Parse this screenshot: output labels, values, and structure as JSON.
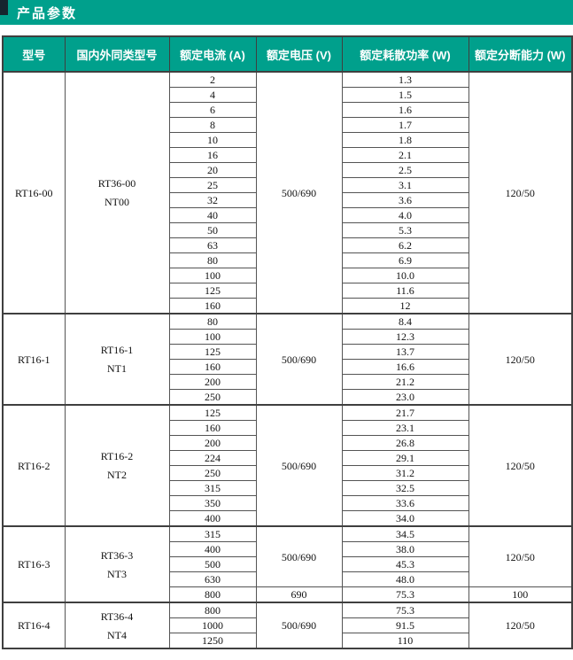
{
  "header": {
    "title": "产品参数"
  },
  "colors": {
    "accent_teal": "#00a08c",
    "accent_dark_square": "#16242e",
    "grid_border": "#3f3f3f",
    "header_text": "#ffffff",
    "body_text": "#111111"
  },
  "table": {
    "columns": [
      {
        "key": "model",
        "label": "型号"
      },
      {
        "key": "equivalent",
        "label": "国内外同类型号"
      },
      {
        "key": "current",
        "label": "额定电流 (A)"
      },
      {
        "key": "voltage",
        "label": "额定电压 (V)"
      },
      {
        "key": "power",
        "label": "额定耗散功率 (W)"
      },
      {
        "key": "breaking",
        "label": "额定分断能力 (W)"
      }
    ],
    "groups": [
      {
        "model": "RT16-00",
        "equivalent_lines": [
          "RT36-00",
          "NT00"
        ],
        "rows": [
          {
            "current": "2",
            "power": "1.3"
          },
          {
            "current": "4",
            "power": "1.5"
          },
          {
            "current": "6",
            "power": "1.6"
          },
          {
            "current": "8",
            "power": "1.7"
          },
          {
            "current": "10",
            "power": "1.8"
          },
          {
            "current": "16",
            "power": "2.1"
          },
          {
            "current": "20",
            "power": "2.5"
          },
          {
            "current": "25",
            "power": "3.1"
          },
          {
            "current": "32",
            "power": "3.6"
          },
          {
            "current": "40",
            "power": "4.0"
          },
          {
            "current": "50",
            "power": "5.3"
          },
          {
            "current": "63",
            "power": "6.2"
          },
          {
            "current": "80",
            "power": "6.9"
          },
          {
            "current": "100",
            "power": "10.0"
          },
          {
            "current": "125",
            "power": "11.6"
          },
          {
            "current": "160",
            "power": "12"
          }
        ],
        "voltage_spans": [
          {
            "value": "500/690",
            "rows": 16
          }
        ],
        "breaking_spans": [
          {
            "value": "120/50",
            "rows": 16
          }
        ]
      },
      {
        "model": "RT16-1",
        "equivalent_lines": [
          "RT16-1",
          "NT1"
        ],
        "rows": [
          {
            "current": "80",
            "power": "8.4"
          },
          {
            "current": "100",
            "power": "12.3"
          },
          {
            "current": "125",
            "power": "13.7"
          },
          {
            "current": "160",
            "power": "16.6"
          },
          {
            "current": "200",
            "power": "21.2"
          },
          {
            "current": "250",
            "power": "23.0"
          }
        ],
        "voltage_spans": [
          {
            "value": "500/690",
            "rows": 6
          }
        ],
        "breaking_spans": [
          {
            "value": "120/50",
            "rows": 6
          }
        ]
      },
      {
        "model": "RT16-2",
        "equivalent_lines": [
          "RT16-2",
          "NT2"
        ],
        "rows": [
          {
            "current": "125",
            "power": "21.7"
          },
          {
            "current": "160",
            "power": "23.1"
          },
          {
            "current": "200",
            "power": "26.8"
          },
          {
            "current": "224",
            "power": "29.1"
          },
          {
            "current": "250",
            "power": "31.2"
          },
          {
            "current": "315",
            "power": "32.5"
          },
          {
            "current": "350",
            "power": "33.6"
          },
          {
            "current": "400",
            "power": "34.0"
          }
        ],
        "voltage_spans": [
          {
            "value": "500/690",
            "rows": 8
          }
        ],
        "breaking_spans": [
          {
            "value": "120/50",
            "rows": 8
          }
        ]
      },
      {
        "model": "RT16-3",
        "equivalent_lines": [
          "RT36-3",
          "NT3"
        ],
        "rows": [
          {
            "current": "315",
            "power": "34.5"
          },
          {
            "current": "400",
            "power": "38.0"
          },
          {
            "current": "500",
            "power": "45.3"
          },
          {
            "current": "630",
            "power": "48.0"
          },
          {
            "current": "800",
            "power": "75.3"
          }
        ],
        "voltage_spans": [
          {
            "value": "500/690",
            "rows": 4
          },
          {
            "value": "690",
            "rows": 1
          }
        ],
        "breaking_spans": [
          {
            "value": "120/50",
            "rows": 4
          },
          {
            "value": "100",
            "rows": 1
          }
        ]
      },
      {
        "model": "RT16-4",
        "equivalent_lines": [
          "RT36-4",
          "NT4"
        ],
        "rows": [
          {
            "current": "800",
            "power": "75.3"
          },
          {
            "current": "1000",
            "power": "91.5"
          },
          {
            "current": "1250",
            "power": "110"
          }
        ],
        "voltage_spans": [
          {
            "value": "500/690",
            "rows": 3
          }
        ],
        "breaking_spans": [
          {
            "value": "120/50",
            "rows": 3
          }
        ]
      }
    ]
  }
}
